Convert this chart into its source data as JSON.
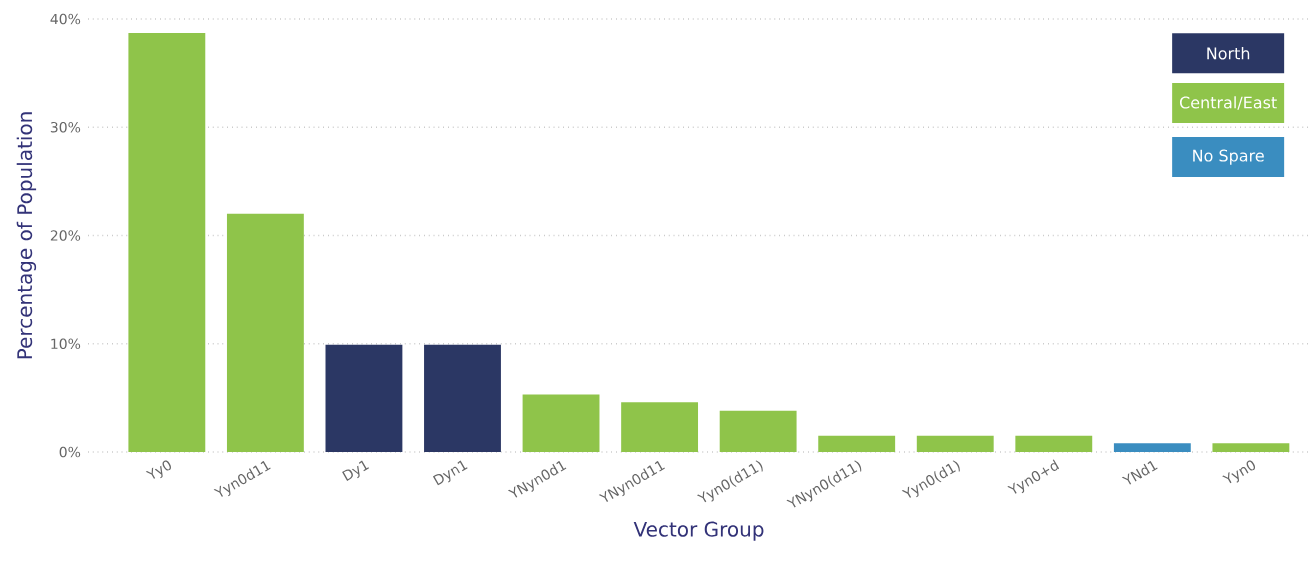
{
  "chart_data": {
    "type": "bar",
    "xlabel": "Vector Group",
    "ylabel": "Percentage of Population",
    "categories": [
      "Yy0",
      "Yyn0d11",
      "Dy1",
      "Dyn1",
      "YNyn0d1",
      "YNyn0d11",
      "Yyn0(d11)",
      "YNyn0(d11)",
      "Yyn0(d1)",
      "Yyn0+d",
      "YNd1",
      "Yyn0"
    ],
    "series": [
      {
        "name": "North",
        "color": "#2b3764",
        "values": [
          null,
          null,
          9.9,
          9.9,
          null,
          null,
          null,
          null,
          null,
          null,
          null,
          null
        ]
      },
      {
        "name": "Central/East",
        "color": "#8fc44a",
        "values": [
          38.7,
          22.0,
          null,
          null,
          5.3,
          4.6,
          3.8,
          1.5,
          1.5,
          1.5,
          null,
          0.8
        ]
      },
      {
        "name": "No Spare",
        "color": "#3a8dc0",
        "values": [
          null,
          null,
          null,
          null,
          null,
          null,
          null,
          null,
          null,
          null,
          0.8,
          null
        ]
      }
    ],
    "ylim": [
      0,
      40
    ],
    "yticks": [
      {
        "value": 0,
        "label": "0%"
      },
      {
        "value": 10,
        "label": "10%"
      },
      {
        "value": 20,
        "label": "20%"
      },
      {
        "value": 30,
        "label": "30%"
      },
      {
        "value": 40,
        "label": "40%"
      }
    ],
    "grid": "y",
    "legend": "top right"
  }
}
